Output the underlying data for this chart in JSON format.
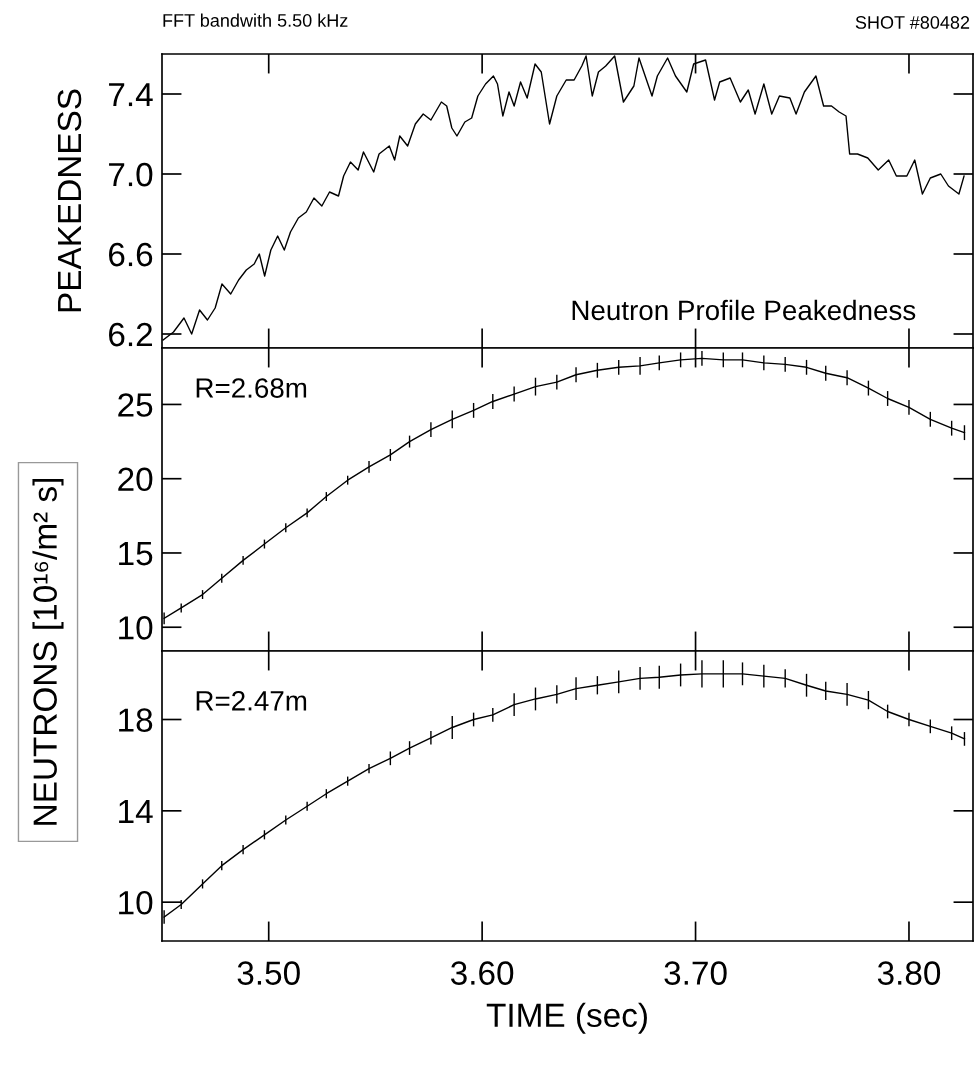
{
  "chart_data": [
    {
      "type": "line",
      "ylabel": "PEAKEDNESS",
      "tick_labels": "y",
      "annotations": [
        "FFT bandwith 5.50 kHz",
        "SHOT #80482",
        "Neutron Profile Peakedness"
      ],
      "x": [
        3.4505,
        3.4554,
        3.4603,
        3.4639,
        3.4676,
        3.4713,
        3.4749,
        3.4781,
        3.4822,
        3.4859,
        3.4895,
        3.4932,
        3.4956,
        3.4981,
        3.501,
        3.5042,
        3.5073,
        3.5102,
        3.5139,
        3.5176,
        3.5212,
        3.5249,
        3.5285,
        3.5327,
        3.5351,
        3.5383,
        3.5419,
        3.5444,
        3.5492,
        3.5517,
        3.5565,
        3.559,
        3.5614,
        3.5651,
        3.5687,
        3.5724,
        3.576,
        3.5809,
        3.5834,
        3.5858,
        3.5882,
        3.5919,
        3.5951,
        3.598,
        3.6016,
        3.6053,
        3.6072,
        3.6097,
        3.6126,
        3.615,
        3.618,
        3.6211,
        3.6248,
        3.6277,
        3.6316,
        3.635,
        3.6394,
        3.6431,
        3.6467,
        3.6487,
        3.6516,
        3.6545,
        3.6579,
        3.6621,
        3.6662,
        3.6711,
        3.6735,
        3.6796,
        3.6821,
        3.6869,
        3.6906,
        3.6959,
        3.6991,
        3.7047,
        3.7089,
        3.7113,
        3.7162,
        3.721,
        3.7247,
        3.7279,
        3.732,
        3.7357,
        3.7393,
        3.7442,
        3.7471,
        3.751,
        3.7564,
        3.76,
        3.7637,
        3.7673,
        3.7705,
        3.7722,
        3.7759,
        3.7807,
        3.7856,
        3.7905,
        3.7941,
        3.799,
        3.8027,
        3.8063,
        3.81,
        3.8149,
        3.8185,
        3.8234,
        3.8258
      ],
      "series": [
        {
          "color": "#000000",
          "values": [
            6.17,
            6.21,
            6.28,
            6.2,
            6.32,
            6.27,
            6.33,
            6.45,
            6.4,
            6.47,
            6.52,
            6.55,
            6.6,
            6.49,
            6.62,
            6.69,
            6.62,
            6.71,
            6.78,
            6.81,
            6.88,
            6.84,
            6.91,
            6.89,
            6.99,
            7.06,
            7.02,
            7.11,
            7.01,
            7.1,
            7.14,
            7.07,
            7.19,
            7.14,
            7.25,
            7.3,
            7.27,
            7.36,
            7.34,
            7.23,
            7.19,
            7.26,
            7.28,
            7.39,
            7.45,
            7.49,
            7.45,
            7.29,
            7.41,
            7.34,
            7.46,
            7.38,
            7.55,
            7.51,
            7.25,
            7.39,
            7.47,
            7.47,
            7.54,
            7.59,
            7.39,
            7.51,
            7.54,
            7.59,
            7.36,
            7.44,
            7.58,
            7.39,
            7.49,
            7.58,
            7.49,
            7.41,
            7.55,
            7.57,
            7.37,
            7.46,
            7.48,
            7.36,
            7.42,
            7.3,
            7.45,
            7.3,
            7.39,
            7.38,
            7.3,
            7.41,
            7.49,
            7.34,
            7.34,
            7.31,
            7.29,
            7.1,
            7.1,
            7.08,
            7.02,
            7.07,
            6.99,
            6.99,
            7.07,
            6.9,
            6.98,
            7.0,
            6.94,
            6.9,
            6.99
          ]
        }
      ],
      "xlim": [
        3.45,
        3.83
      ],
      "ylim": [
        6.13,
        7.6
      ],
      "xticks": [
        {
          "value": 3.5,
          "label": null
        },
        {
          "value": 3.6,
          "label": null
        },
        {
          "value": 3.7,
          "label": null
        },
        {
          "value": 3.8,
          "label": null
        }
      ],
      "yticks": [
        {
          "value": 6.2,
          "label": "6.2"
        },
        {
          "value": 6.6,
          "label": "6.6"
        },
        {
          "value": 7.0,
          "label": "7.0"
        },
        {
          "value": 7.4,
          "label": "7.4"
        }
      ]
    },
    {
      "type": "line",
      "ylabel": "NEUTRONS [10¹⁶/m² s]",
      "tick_labels": "y",
      "annotations": [
        "R=2.68m"
      ],
      "x": [
        3.451,
        3.459,
        3.469,
        3.478,
        3.488,
        3.498,
        3.508,
        3.518,
        3.527,
        3.537,
        3.547,
        3.557,
        3.566,
        3.576,
        3.586,
        3.596,
        3.605,
        3.615,
        3.625,
        3.635,
        3.644,
        3.654,
        3.664,
        3.674,
        3.683,
        3.693,
        3.703,
        3.713,
        3.722,
        3.732,
        3.742,
        3.752,
        3.761,
        3.771,
        3.781,
        3.79,
        3.8,
        3.81,
        3.82,
        3.826
      ],
      "series": [
        {
          "color": "#000000",
          "values": [
            10.6,
            11.3,
            12.2,
            13.3,
            14.5,
            15.6,
            16.7,
            17.7,
            18.8,
            19.9,
            20.8,
            21.6,
            22.5,
            23.3,
            24.0,
            24.6,
            25.2,
            25.7,
            26.2,
            26.5,
            27.0,
            27.3,
            27.5,
            27.6,
            27.8,
            28.0,
            28.1,
            28.0,
            28.0,
            27.8,
            27.7,
            27.5,
            27.1,
            26.8,
            26.1,
            25.4,
            24.8,
            24.0,
            23.4,
            23.1
          ],
          "errors": [
            0.4,
            0.3,
            0.3,
            0.3,
            0.3,
            0.3,
            0.3,
            0.3,
            0.3,
            0.3,
            0.4,
            0.4,
            0.4,
            0.5,
            0.6,
            0.5,
            0.5,
            0.5,
            0.6,
            0.5,
            0.5,
            0.5,
            0.5,
            0.6,
            0.5,
            0.5,
            0.5,
            0.5,
            0.5,
            0.5,
            0.5,
            0.5,
            0.5,
            0.5,
            0.5,
            0.5,
            0.5,
            0.5,
            0.5,
            0.5
          ]
        }
      ],
      "xlim": [
        3.45,
        3.83
      ],
      "ylim": [
        8.4,
        28.8
      ],
      "xticks": [
        {
          "value": 3.5,
          "label": null
        },
        {
          "value": 3.6,
          "label": null
        },
        {
          "value": 3.7,
          "label": null
        },
        {
          "value": 3.8,
          "label": null
        }
      ],
      "yticks": [
        10,
        15,
        20,
        25
      ]
    },
    {
      "type": "line",
      "xlabel": "TIME (sec)",
      "annotations": [
        "R=2.47m"
      ],
      "x": [
        3.451,
        3.459,
        3.469,
        3.478,
        3.488,
        3.498,
        3.508,
        3.518,
        3.527,
        3.537,
        3.547,
        3.557,
        3.566,
        3.576,
        3.586,
        3.596,
        3.605,
        3.615,
        3.625,
        3.635,
        3.644,
        3.654,
        3.664,
        3.674,
        3.683,
        3.693,
        3.703,
        3.713,
        3.722,
        3.732,
        3.742,
        3.752,
        3.761,
        3.771,
        3.781,
        3.79,
        3.8,
        3.81,
        3.82,
        3.826
      ],
      "series": [
        {
          "color": "#000000",
          "values": [
            9.35,
            9.9,
            10.8,
            11.6,
            12.3,
            12.95,
            13.6,
            14.2,
            14.75,
            15.3,
            15.85,
            16.3,
            16.75,
            17.2,
            17.65,
            18.0,
            18.2,
            18.65,
            18.9,
            19.1,
            19.35,
            19.5,
            19.65,
            19.8,
            19.85,
            19.95,
            20.0,
            20.0,
            20.0,
            19.9,
            19.8,
            19.5,
            19.25,
            19.1,
            18.85,
            18.35,
            18.0,
            17.7,
            17.4,
            17.15
          ],
          "errors": [
            0.3,
            0.2,
            0.2,
            0.2,
            0.2,
            0.2,
            0.2,
            0.2,
            0.2,
            0.2,
            0.2,
            0.3,
            0.3,
            0.3,
            0.5,
            0.3,
            0.3,
            0.5,
            0.5,
            0.4,
            0.5,
            0.4,
            0.5,
            0.5,
            0.5,
            0.5,
            0.6,
            0.6,
            0.5,
            0.5,
            0.4,
            0.5,
            0.4,
            0.5,
            0.4,
            0.3,
            0.3,
            0.3,
            0.3,
            0.3
          ]
        }
      ],
      "xlim": [
        3.45,
        3.83
      ],
      "ylim": [
        8.3,
        21.0
      ],
      "xticks": [
        {
          "value": 3.5,
          "label": "3.50"
        },
        {
          "value": 3.6,
          "label": "3.60"
        },
        {
          "value": 3.7,
          "label": "3.70"
        },
        {
          "value": 3.8,
          "label": "3.80"
        }
      ],
      "yticks": [
        10,
        14,
        18
      ]
    }
  ]
}
